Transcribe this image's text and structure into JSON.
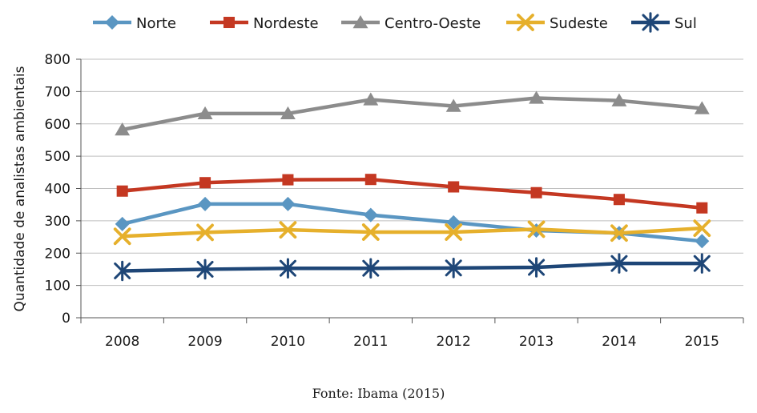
{
  "chart_data": {
    "type": "line",
    "categories": [
      "2008",
      "2009",
      "2010",
      "2011",
      "2012",
      "2013",
      "2014",
      "2015"
    ],
    "ylabel": "Quantidade de analistas ambientais",
    "xlabel": "",
    "ylim": [
      0,
      800
    ],
    "yticks": [
      0,
      100,
      200,
      300,
      400,
      500,
      600,
      700,
      800
    ],
    "grid": true,
    "legend_position": "top",
    "series": [
      {
        "name": "Norte",
        "color": "#5a96c2",
        "marker": "diamond",
        "values": [
          290,
          352,
          352,
          318,
          295,
          270,
          262,
          237
        ]
      },
      {
        "name": "Nordeste",
        "color": "#c43822",
        "marker": "square",
        "values": [
          392,
          418,
          427,
          428,
          405,
          387,
          366,
          340
        ]
      },
      {
        "name": "Centro-Oeste",
        "color": "#8c8c8c",
        "marker": "triangle",
        "values": [
          582,
          632,
          632,
          675,
          655,
          680,
          672,
          648
        ]
      },
      {
        "name": "Sudeste",
        "color": "#e6b02c",
        "marker": "x",
        "values": [
          252,
          264,
          272,
          265,
          265,
          274,
          262,
          277
        ]
      },
      {
        "name": "Sul",
        "color": "#1e4677",
        "marker": "star",
        "values": [
          145,
          150,
          153,
          153,
          154,
          156,
          168,
          168
        ]
      }
    ]
  },
  "source": "Fonte: Ibama (2015)"
}
